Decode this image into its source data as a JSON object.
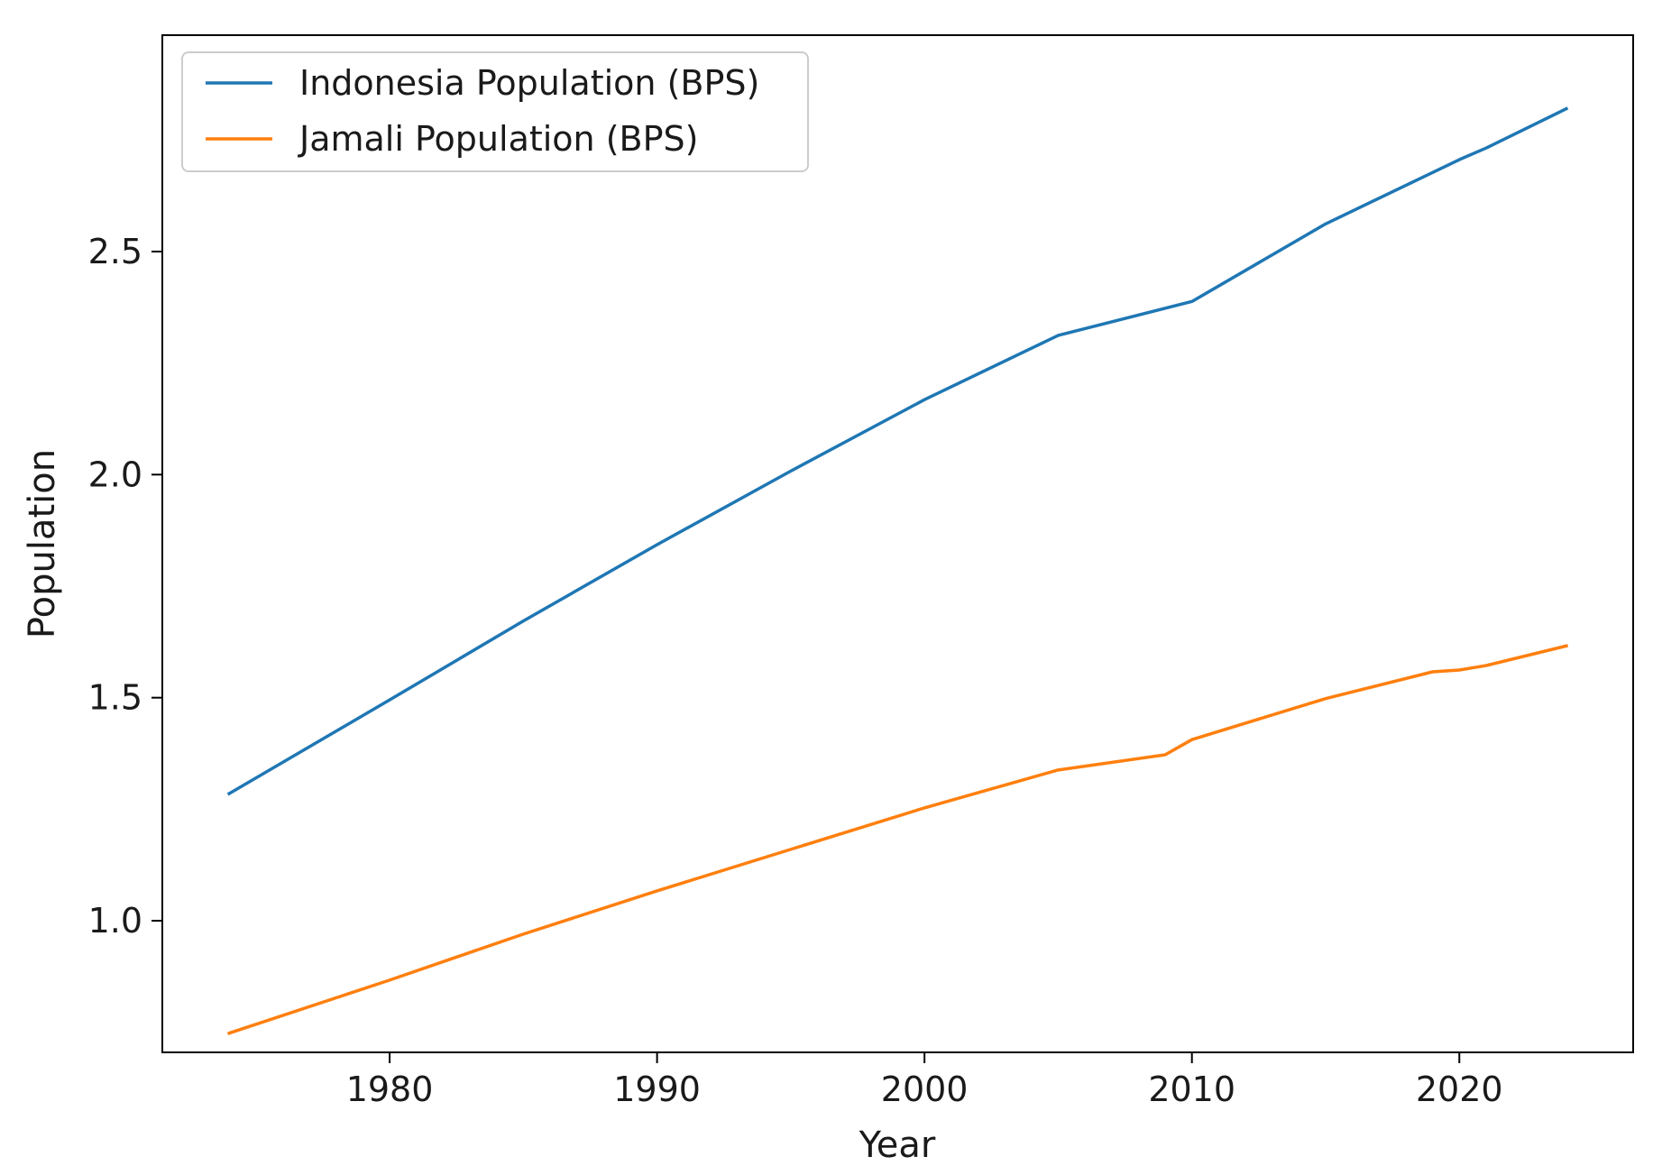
{
  "chart_data": {
    "type": "line",
    "title": "",
    "xlabel": "Year",
    "ylabel": "Population",
    "xlim": [
      1971.5,
      2026.5
    ],
    "ylim": [
      0.705,
      2.985
    ],
    "xticks": [
      1980,
      1990,
      2000,
      2010,
      2020
    ],
    "xtick_labels": [
      "1980",
      "1990",
      "2000",
      "2010",
      "2020"
    ],
    "yticks": [
      1.0,
      1.5,
      2.0,
      2.5
    ],
    "ytick_labels": [
      "1.0",
      "1.5",
      "2.0",
      "2.5"
    ],
    "grid": false,
    "legend_position": "top-left",
    "series": [
      {
        "name": "Indonesia Population (BPS)",
        "color": "#1f77b4",
        "x": [
          1974,
          1980,
          1985,
          1990,
          1995,
          2000,
          2005,
          2010,
          2015,
          2020,
          2021,
          2024
        ],
        "y": [
          1.285,
          1.495,
          1.672,
          1.843,
          2.008,
          2.168,
          2.312,
          2.388,
          2.562,
          2.706,
          2.732,
          2.82
        ]
      },
      {
        "name": "Jamali Population (BPS)",
        "color": "#ff7f0e",
        "x": [
          1974,
          1980,
          1985,
          1990,
          1995,
          2000,
          2005,
          2009,
          2010,
          2015,
          2019,
          2020,
          2021,
          2024
        ],
        "y": [
          0.748,
          0.867,
          0.97,
          1.067,
          1.16,
          1.253,
          1.338,
          1.372,
          1.406,
          1.498,
          1.558,
          1.562,
          1.572,
          1.616
        ]
      }
    ]
  }
}
